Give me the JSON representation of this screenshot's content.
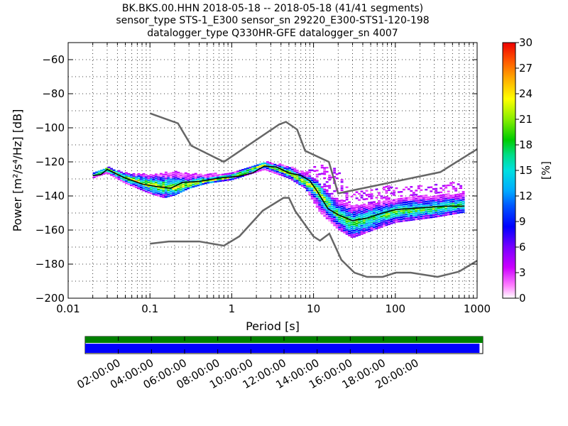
{
  "titles": {
    "line1": "BK.BKS.00.HHN   2018-05-18 -- 2018-05-18  (41/41 segments)",
    "line2": "sensor_type STS-1_E300 sensor_sn 29220_E300-STS1-120-198",
    "line3": "datalogger_type Q330HR-GFE datalogger_sn 4007"
  },
  "chart_data": {
    "type": "heatmap",
    "xlabel": "Period [s]",
    "ylabel": "Power [m²/s⁴/Hz] [dB]",
    "x_scale": "log",
    "xlim": [
      0.01,
      1000
    ],
    "ylim": [
      -200,
      -50
    ],
    "x_ticks": [
      {
        "value": 0.01,
        "label": "0.01"
      },
      {
        "value": 0.1,
        "label": "0.1"
      },
      {
        "value": 1,
        "label": "1"
      },
      {
        "value": 10,
        "label": "10"
      },
      {
        "value": 100,
        "label": "100"
      },
      {
        "value": 1000,
        "label": "1000"
      }
    ],
    "y_ticks": [
      {
        "value": -60,
        "label": "−60"
      },
      {
        "value": -80,
        "label": "−80"
      },
      {
        "value": -100,
        "label": "−100"
      },
      {
        "value": -120,
        "label": "−120"
      },
      {
        "value": -140,
        "label": "−140"
      },
      {
        "value": -160,
        "label": "−160"
      },
      {
        "value": -180,
        "label": "−180"
      },
      {
        "value": -200,
        "label": "−200"
      }
    ],
    "grid": true,
    "colorbar": {
      "label": "[%]",
      "range": [
        0,
        30
      ],
      "ticks": [
        "0",
        "3",
        "6",
        "9",
        "12",
        "15",
        "18",
        "21",
        "24",
        "27",
        "30"
      ],
      "colormap": "pqlx"
    },
    "noise_models": {
      "color": "#666666",
      "high": {
        "x": [
          0.1,
          0.22,
          0.32,
          0.8,
          3.8,
          4.6,
          6.3,
          7.9,
          15.4,
          20,
          354.8,
          1000
        ],
        "y": [
          -91.5,
          -97.4,
          -110.5,
          -120,
          -98,
          -96.5,
          -101,
          -113.5,
          -120,
          -138.5,
          -126,
          -112.5
        ]
      },
      "low": {
        "x": [
          0.1,
          0.17,
          0.4,
          0.8,
          1.24,
          2.4,
          4.3,
          5,
          6,
          10,
          12,
          15.6,
          21.9,
          31.6,
          45,
          70,
          101,
          154,
          328,
          600,
          1000
        ],
        "y": [
          -168,
          -166.7,
          -166.7,
          -169.2,
          -163.7,
          -148.6,
          -141.1,
          -141.1,
          -149,
          -163.8,
          -166.2,
          -162.1,
          -177.5,
          -185,
          -187.5,
          -187.5,
          -185,
          -185,
          -187.5,
          -184.4,
          -178
        ]
      }
    },
    "mean_curve": {
      "color": "#000000",
      "x": [
        0.02,
        0.025,
        0.03,
        0.035,
        0.05,
        0.08,
        0.12,
        0.18,
        0.25,
        0.4,
        0.7,
        1.2,
        1.8,
        2.5,
        3.5,
        5,
        7,
        9,
        11,
        15,
        20,
        30,
        45,
        70,
        100,
        200,
        400,
        700
      ],
      "y": [
        -128,
        -127.5,
        -124.5,
        -126,
        -129.5,
        -133,
        -134.5,
        -135.5,
        -132,
        -131.5,
        -129.5,
        -128.5,
        -126.5,
        -122.5,
        -123,
        -126.5,
        -128,
        -131,
        -137,
        -147.5,
        -151,
        -154.5,
        -153,
        -150,
        -148,
        -147,
        -146,
        -146
      ]
    },
    "mode_curve": {
      "x": [
        0.02,
        0.03,
        0.05,
        0.1,
        0.2,
        0.4,
        1,
        2.5,
        5,
        10,
        20,
        30,
        60,
        100,
        300,
        700
      ],
      "y": [
        -128.5,
        -125,
        -130,
        -134.5,
        -136,
        -132.5,
        -129.5,
        -122.5,
        -127,
        -135.5,
        -152,
        -157,
        -153,
        -150,
        -148,
        -146
      ]
    },
    "spread_band": {
      "x": [
        0.02,
        0.03,
        0.05,
        0.1,
        0.15,
        0.2,
        0.3,
        0.5,
        1,
        2.5,
        5,
        8,
        12,
        20,
        30,
        50,
        100,
        300,
        700
      ],
      "upper": [
        -127,
        -123.5,
        -127,
        -128,
        -127,
        -126,
        -127.5,
        -128,
        -126.5,
        -120.5,
        -123,
        -127,
        -134,
        -143,
        -146,
        -145,
        -142,
        -140,
        -139
      ],
      "lower": [
        -130,
        -127,
        -133,
        -139,
        -141.5,
        -140,
        -136,
        -133,
        -131,
        -125,
        -130,
        -136,
        -150,
        -160,
        -165,
        -161,
        -156,
        -153,
        -150
      ]
    },
    "outlier_band": {
      "x": [
        6,
        8,
        10,
        13,
        17,
        20,
        30,
        60,
        100,
        300,
        700
      ],
      "upper": [
        -129,
        -125,
        -123.5,
        -122,
        -122.5,
        -126,
        -138.5,
        -135.5,
        -134,
        -133.5,
        -132.5
      ],
      "lower": [
        -131,
        -132,
        -136,
        -144,
        -148,
        -150,
        -152,
        -150,
        -147,
        -145,
        -143
      ]
    }
  },
  "timeline": {
    "labels": [
      "02:00:00",
      "04:00:00",
      "06:00:00",
      "08:00:00",
      "10:00:00",
      "12:00:00",
      "14:00:00",
      "16:00:00",
      "18:00:00",
      "20:00:00"
    ],
    "label_hours": [
      2,
      4,
      6,
      8,
      10,
      12,
      14,
      16,
      18,
      20
    ],
    "range_hours": [
      0,
      24
    ],
    "data_coverage_hours": [
      0,
      23.8
    ],
    "psd_coverage_hours": [
      0,
      24
    ],
    "colors": {
      "data": "#0000ff",
      "psd": "#008000"
    }
  }
}
